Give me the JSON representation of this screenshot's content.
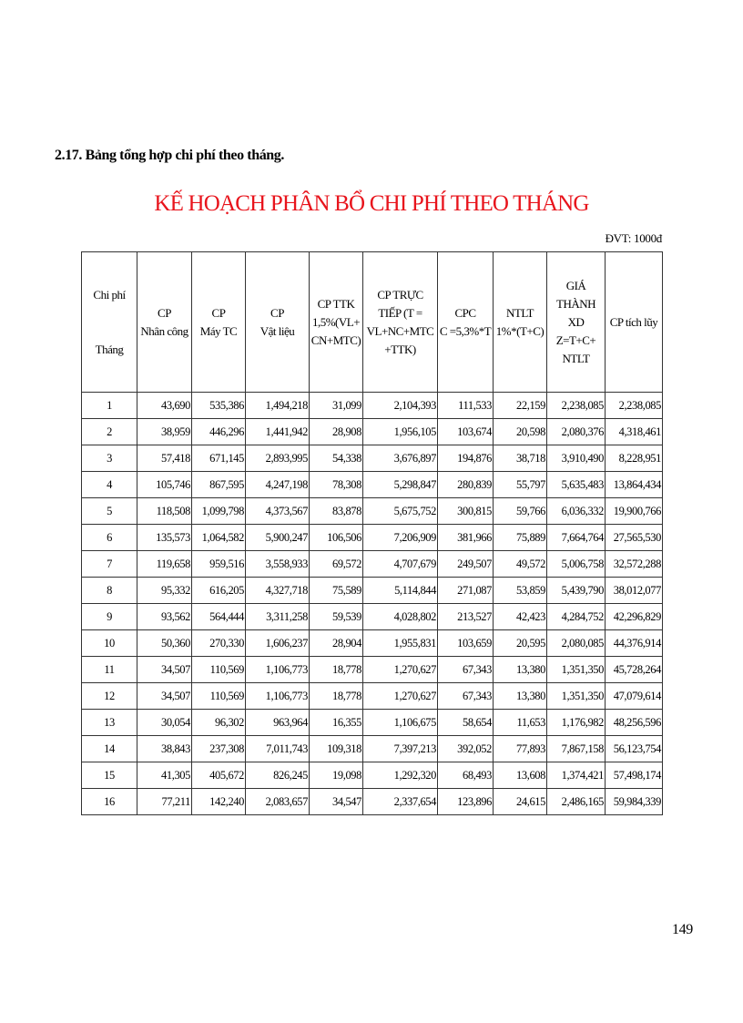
{
  "heading": "2.17.   Bảng tổng hợp  chi phí theo tháng.",
  "title": "KẾ HOẠCH PHÂN BỔ CHI PHÍ THEO THÁNG",
  "unit": "ĐVT:  1000đ",
  "colors": {
    "title": "#e8141c"
  },
  "table": {
    "headers": [
      [
        "Chi phí",
        "",
        "Tháng"
      ],
      [
        "CP",
        "Nhân công"
      ],
      [
        "CP",
        "Máy TC"
      ],
      [
        "CP",
        "Vật liệu"
      ],
      [
        "CP TTK",
        "1,5%(VL+",
        "CN+MTC)"
      ],
      [
        "CP TRỰC",
        "TIẾP (T =",
        "VL+NC+MTC",
        "+TTK)"
      ],
      [
        "CPC",
        "C =5,3%*T"
      ],
      [
        "NTLT",
        "1%*(T+C)"
      ],
      [
        "GIÁ",
        "THÀNH",
        "XD",
        "Z=T+C+",
        "NTLT"
      ],
      [
        "CP tích lũy"
      ]
    ],
    "rows": [
      [
        "1",
        "43,690",
        "535,386",
        "1,494,218",
        "31,099",
        "2,104,393",
        "111,533",
        "22,159",
        "2,238,085",
        "2,238,085"
      ],
      [
        "2",
        "38,959",
        "446,296",
        "1,441,942",
        "28,908",
        "1,956,105",
        "103,674",
        "20,598",
        "2,080,376",
        "4,318,461"
      ],
      [
        "3",
        "57,418",
        "671,145",
        "2,893,995",
        "54,338",
        "3,676,897",
        "194,876",
        "38,718",
        "3,910,490",
        "8,228,951"
      ],
      [
        "4",
        "105,746",
        "867,595",
        "4,247,198",
        "78,308",
        "5,298,847",
        "280,839",
        "55,797",
        "5,635,483",
        "13,864,434"
      ],
      [
        "5",
        "118,508",
        "1,099,798",
        "4,373,567",
        "83,878",
        "5,675,752",
        "300,815",
        "59,766",
        "6,036,332",
        "19,900,766"
      ],
      [
        "6",
        "135,573",
        "1,064,582",
        "5,900,247",
        "106,506",
        "7,206,909",
        "381,966",
        "75,889",
        "7,664,764",
        "27,565,530"
      ],
      [
        "7",
        "119,658",
        "959,516",
        "3,558,933",
        "69,572",
        "4,707,679",
        "249,507",
        "49,572",
        "5,006,758",
        "32,572,288"
      ],
      [
        "8",
        "95,332",
        "616,205",
        "4,327,718",
        "75,589",
        "5,114,844",
        "271,087",
        "53,859",
        "5,439,790",
        "38,012,077"
      ],
      [
        "9",
        "93,562",
        "564,444",
        "3,311,258",
        "59,539",
        "4,028,802",
        "213,527",
        "42,423",
        "4,284,752",
        "42,296,829"
      ],
      [
        "10",
        "50,360",
        "270,330",
        "1,606,237",
        "28,904",
        "1,955,831",
        "103,659",
        "20,595",
        "2,080,085",
        "44,376,914"
      ],
      [
        "11",
        "34,507",
        "110,569",
        "1,106,773",
        "18,778",
        "1,270,627",
        "67,343",
        "13,380",
        "1,351,350",
        "45,728,264"
      ],
      [
        "12",
        "34,507",
        "110,569",
        "1,106,773",
        "18,778",
        "1,270,627",
        "67,343",
        "13,380",
        "1,351,350",
        "47,079,614"
      ],
      [
        "13",
        "30,054",
        "96,302",
        "963,964",
        "16,355",
        "1,106,675",
        "58,654",
        "11,653",
        "1,176,982",
        "48,256,596"
      ],
      [
        "14",
        "38,843",
        "237,308",
        "7,011,743",
        "109,318",
        "7,397,213",
        "392,052",
        "77,893",
        "7,867,158",
        "56,123,754"
      ],
      [
        "15",
        "41,305",
        "405,672",
        "826,245",
        "19,098",
        "1,292,320",
        "68,493",
        "13,608",
        "1,374,421",
        "57,498,174"
      ],
      [
        "16",
        "77,211",
        "142,240",
        "2,083,657",
        "34,547",
        "2,337,654",
        "123,896",
        "24,615",
        "2,486,165",
        "59,984,339"
      ]
    ]
  },
  "page_number": "149"
}
